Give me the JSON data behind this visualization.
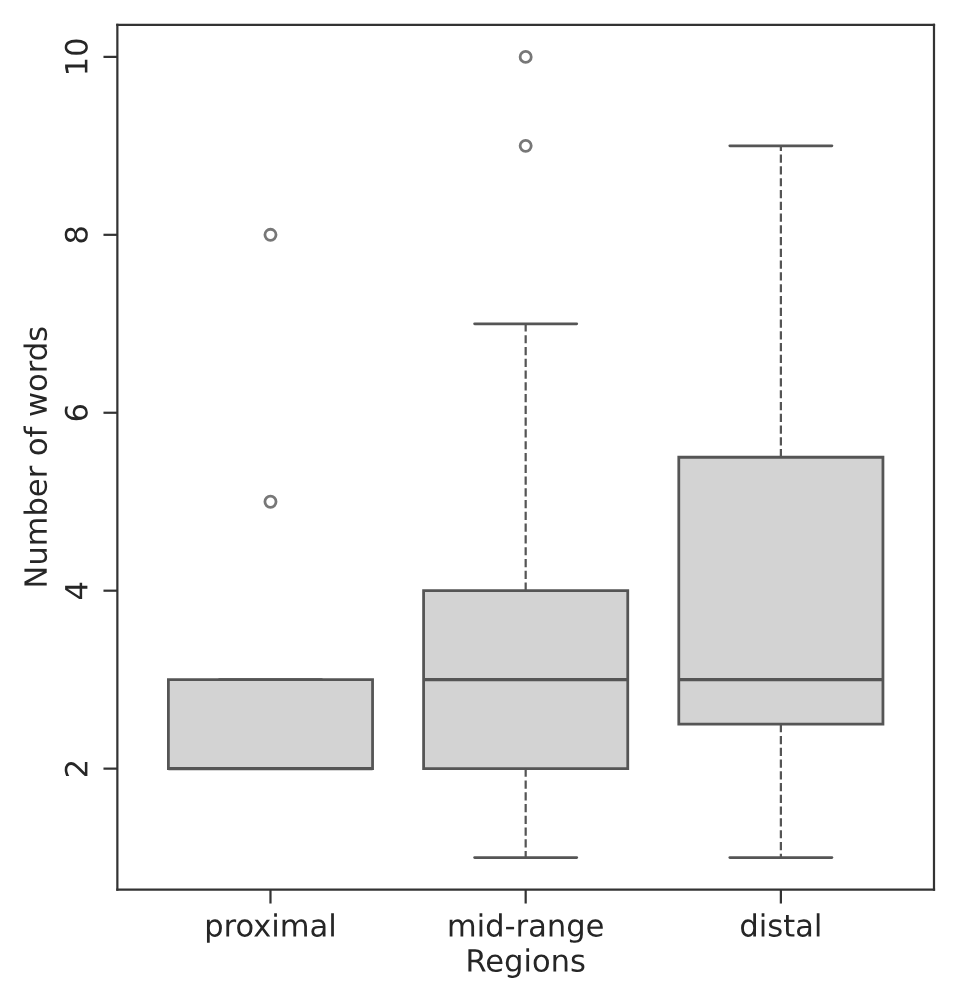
{
  "chart_data": {
    "type": "box",
    "xlabel": "Regions",
    "ylabel": "Number of words",
    "categories": [
      "proximal",
      "mid-range",
      "distal"
    ],
    "boxes": [
      {
        "low": 2,
        "q1": 2,
        "median": 2,
        "q3": 3,
        "high": 3,
        "outliers": [
          5,
          8
        ]
      },
      {
        "low": 1,
        "q1": 2,
        "median": 3,
        "q3": 4,
        "high": 7,
        "outliers": [
          9,
          10
        ]
      },
      {
        "low": 1,
        "q1": 2.5,
        "median": 3,
        "q3": 5.5,
        "high": 9
      }
    ],
    "color": "#d3d3d3",
    "line_style": "dashed",
    "ylim": [
      0.64,
      10.36
    ],
    "yticks": [
      2,
      4,
      6,
      8,
      10
    ],
    "grid": false,
    "legend": false
  }
}
